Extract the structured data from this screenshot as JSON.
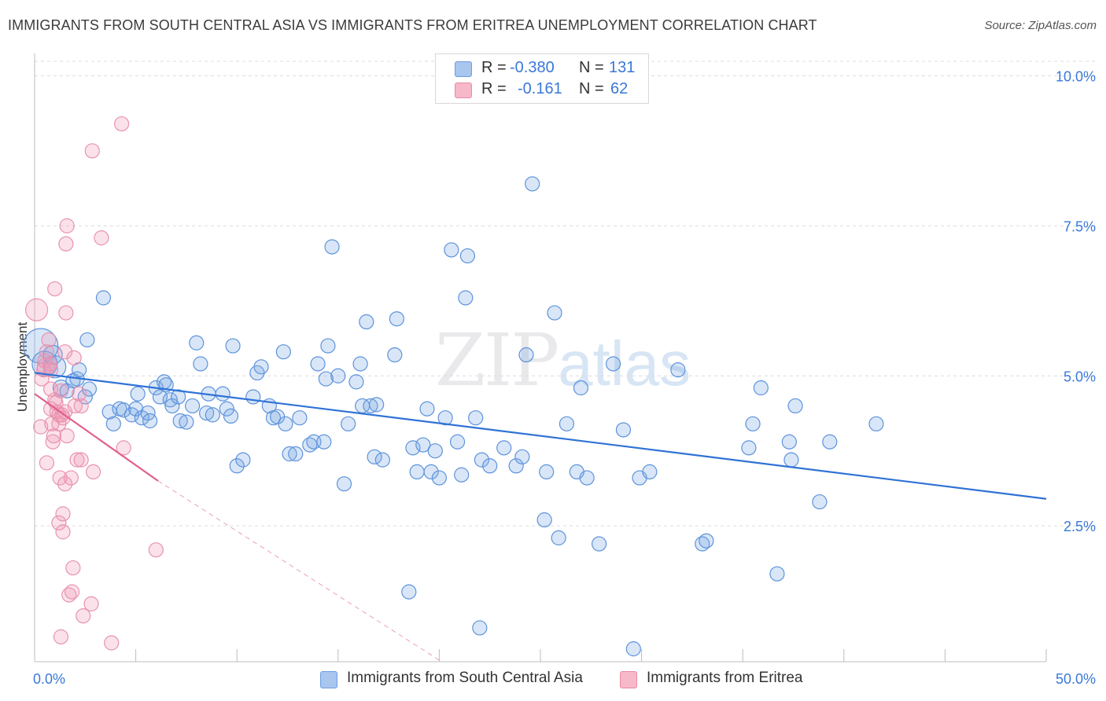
{
  "title": "IMMIGRANTS FROM SOUTH CENTRAL ASIA VS IMMIGRANTS FROM ERITREA UNEMPLOYMENT CORRELATION CHART",
  "source": "Source: ZipAtlas.com",
  "watermark": {
    "zip": "ZIP",
    "atlas": "atlas"
  },
  "legend_top": {
    "rows": [
      {
        "r_label": "R =",
        "r_value": "-0.380",
        "n_label": "N =",
        "n_value": "131",
        "color": "#a9c6ee",
        "border": "#6b9ee0"
      },
      {
        "r_label": "R =",
        "r_value": "-0.161",
        "n_label": "N =",
        "n_value": "62",
        "color": "#f7b8ca",
        "border": "#e88aa6"
      }
    ]
  },
  "legend_bottom": [
    {
      "label": "Immigrants from South Central Asia",
      "color": "#a9c6ee",
      "border": "#6b9ee0"
    },
    {
      "label": "Immigrants from Eritrea",
      "color": "#f7b8ca",
      "border": "#e88aa6"
    }
  ],
  "colors": {
    "blue_fill": "rgba(120,165,225,0.28)",
    "blue_stroke": "#5d93dc",
    "blue_line": "#2f72d6",
    "pink_fill": "rgba(240,150,180,0.28)",
    "pink_stroke": "#e893ae",
    "pink_line": "#e0608c",
    "grid": "#dcdce0",
    "axis_text": "#3a78d8"
  },
  "chart_data": {
    "type": "scatter",
    "title": "IMMIGRANTS FROM SOUTH CENTRAL ASIA VS IMMIGRANTS FROM ERITREA UNEMPLOYMENT CORRELATION CHART",
    "xlabel": "",
    "ylabel": "Unemployment",
    "xlim": [
      0,
      50
    ],
    "ylim": [
      0,
      10.5
    ],
    "x_tick_labels": [
      {
        "value": 0,
        "label": "0.0%"
      },
      {
        "value": 50,
        "label": "50.0%"
      }
    ],
    "y_tick_labels": [
      {
        "value": 2.5,
        "label": "2.5%"
      },
      {
        "value": 5.0,
        "label": "5.0%"
      },
      {
        "value": 7.5,
        "label": "7.5%"
      },
      {
        "value": 10.0,
        "label": "10.0%"
      }
    ],
    "x_minor_ticks": [
      0,
      5,
      10,
      15,
      20,
      25,
      30,
      35,
      40,
      45,
      50
    ],
    "series": [
      {
        "name": "Immigrants from South Central Asia",
        "R": -0.38,
        "N": 131,
        "trend": {
          "x": [
            0,
            50
          ],
          "y": [
            5.05,
            2.95
          ],
          "extend_dashed_to": null
        },
        "points": [
          [
            0.3,
            5.5,
            22
          ],
          [
            0.5,
            5.2,
            16
          ],
          [
            0.9,
            5.35,
            12
          ],
          [
            1.0,
            5.15,
            14
          ],
          [
            1.3,
            4.8,
            10
          ],
          [
            1.6,
            4.75,
            9
          ],
          [
            1.9,
            4.92,
            9
          ],
          [
            2.1,
            4.95,
            9
          ],
          [
            2.2,
            5.1,
            9
          ],
          [
            2.5,
            4.65,
            9
          ],
          [
            2.7,
            4.78,
            9
          ],
          [
            2.6,
            5.6,
            9
          ],
          [
            3.4,
            6.3,
            9
          ],
          [
            3.7,
            4.4,
            9
          ],
          [
            3.9,
            4.2,
            9
          ],
          [
            4.2,
            4.45,
            9
          ],
          [
            4.4,
            4.43,
            9
          ],
          [
            4.8,
            4.35,
            9
          ],
          [
            5.0,
            4.45,
            9
          ],
          [
            5.1,
            4.7,
            9
          ],
          [
            5.3,
            4.3,
            9
          ],
          [
            5.6,
            4.38,
            9
          ],
          [
            5.7,
            4.25,
            9
          ],
          [
            6.0,
            4.8,
            9
          ],
          [
            6.2,
            4.65,
            9
          ],
          [
            6.4,
            4.9,
            9
          ],
          [
            6.5,
            4.85,
            9
          ],
          [
            6.7,
            4.6,
            9
          ],
          [
            6.8,
            4.5,
            9
          ],
          [
            7.1,
            4.65,
            9
          ],
          [
            7.2,
            4.25,
            9
          ],
          [
            7.5,
            4.23,
            9
          ],
          [
            7.8,
            4.5,
            9
          ],
          [
            8.0,
            5.55,
            9
          ],
          [
            8.2,
            5.2,
            9
          ],
          [
            8.5,
            4.38,
            9
          ],
          [
            8.6,
            4.7,
            9
          ],
          [
            8.8,
            4.35,
            9
          ],
          [
            9.3,
            4.7,
            9
          ],
          [
            9.5,
            4.45,
            9
          ],
          [
            9.7,
            4.33,
            9
          ],
          [
            9.8,
            5.5,
            9
          ],
          [
            10.0,
            3.5,
            9
          ],
          [
            10.3,
            3.6,
            9
          ],
          [
            10.8,
            4.65,
            9
          ],
          [
            11.0,
            5.05,
            9
          ],
          [
            11.2,
            5.15,
            9
          ],
          [
            11.6,
            4.5,
            9
          ],
          [
            11.8,
            4.3,
            9
          ],
          [
            12.0,
            4.32,
            9
          ],
          [
            12.4,
            4.2,
            9
          ],
          [
            12.3,
            5.4,
            9
          ],
          [
            12.6,
            3.7,
            9
          ],
          [
            12.9,
            3.7,
            9
          ],
          [
            13.1,
            4.3,
            9
          ],
          [
            13.6,
            3.85,
            9
          ],
          [
            13.8,
            3.9,
            9
          ],
          [
            14.0,
            5.2,
            9
          ],
          [
            14.3,
            3.9,
            9
          ],
          [
            14.4,
            4.95,
            9
          ],
          [
            14.5,
            5.5,
            9
          ],
          [
            14.7,
            7.15,
            9
          ],
          [
            15.0,
            5.0,
            9
          ],
          [
            15.3,
            3.2,
            9
          ],
          [
            15.5,
            4.2,
            9
          ],
          [
            15.9,
            4.9,
            9
          ],
          [
            16.1,
            5.2,
            9
          ],
          [
            16.2,
            4.5,
            9
          ],
          [
            16.4,
            5.9,
            9
          ],
          [
            16.6,
            4.5,
            9
          ],
          [
            16.9,
            4.52,
            9
          ],
          [
            16.8,
            3.65,
            9
          ],
          [
            17.2,
            3.6,
            9
          ],
          [
            17.8,
            5.35,
            9
          ],
          [
            17.9,
            5.95,
            9
          ],
          [
            18.5,
            1.4,
            9
          ],
          [
            18.7,
            3.8,
            9
          ],
          [
            18.9,
            3.4,
            9
          ],
          [
            19.2,
            3.85,
            9
          ],
          [
            19.4,
            4.45,
            9
          ],
          [
            19.6,
            3.4,
            9
          ],
          [
            19.8,
            3.75,
            9
          ],
          [
            20.0,
            3.3,
            9
          ],
          [
            20.3,
            4.3,
            9
          ],
          [
            20.6,
            7.1,
            9
          ],
          [
            20.9,
            3.9,
            9
          ],
          [
            21.1,
            3.35,
            9
          ],
          [
            21.3,
            6.3,
            9
          ],
          [
            21.4,
            7.0,
            9
          ],
          [
            21.8,
            4.3,
            9
          ],
          [
            22.0,
            0.8,
            9
          ],
          [
            22.1,
            3.6,
            9
          ],
          [
            22.5,
            3.5,
            9
          ],
          [
            23.2,
            3.8,
            9
          ],
          [
            23.8,
            3.5,
            9
          ],
          [
            24.1,
            3.65,
            9
          ],
          [
            24.3,
            5.35,
            9
          ],
          [
            24.6,
            8.2,
            9
          ],
          [
            25.2,
            2.6,
            9
          ],
          [
            25.3,
            3.4,
            9
          ],
          [
            25.7,
            6.05,
            9
          ],
          [
            25.9,
            2.3,
            9
          ],
          [
            26.3,
            4.2,
            9
          ],
          [
            26.8,
            3.4,
            9
          ],
          [
            27.0,
            4.8,
            9
          ],
          [
            27.3,
            3.3,
            9
          ],
          [
            27.9,
            2.2,
            9
          ],
          [
            28.6,
            5.2,
            9
          ],
          [
            29.1,
            4.1,
            9
          ],
          [
            29.6,
            0.45,
            9
          ],
          [
            29.9,
            3.3,
            9
          ],
          [
            30.4,
            3.4,
            9
          ],
          [
            31.8,
            5.1,
            9
          ],
          [
            33.0,
            2.2,
            9
          ],
          [
            33.2,
            2.25,
            9
          ],
          [
            35.3,
            3.8,
            9
          ],
          [
            35.5,
            4.2,
            9
          ],
          [
            35.9,
            4.8,
            9
          ],
          [
            36.7,
            1.7,
            9
          ],
          [
            37.3,
            3.9,
            9
          ],
          [
            37.4,
            3.6,
            9
          ],
          [
            37.6,
            4.5,
            9
          ],
          [
            38.8,
            2.9,
            9
          ],
          [
            39.3,
            3.9,
            9
          ],
          [
            41.6,
            4.2,
            9
          ]
        ]
      },
      {
        "name": "Immigrants from Eritrea",
        "R": -0.161,
        "N": 62,
        "trend": {
          "x": [
            0,
            6.1
          ],
          "y": [
            4.7,
            3.25
          ],
          "dashed_to": {
            "x": 20.0,
            "y": 0.0
          }
        },
        "points": [
          [
            0.1,
            6.1,
            14
          ],
          [
            0.3,
            4.15,
            9
          ],
          [
            0.35,
            4.95,
            9
          ],
          [
            0.45,
            5.1,
            9
          ],
          [
            0.5,
            5.25,
            9
          ],
          [
            0.55,
            5.15,
            11
          ],
          [
            0.6,
            5.4,
            9
          ],
          [
            0.6,
            3.55,
            9
          ],
          [
            0.7,
            5.6,
            9
          ],
          [
            0.75,
            5.2,
            9
          ],
          [
            0.8,
            5.1,
            9
          ],
          [
            0.8,
            4.78,
            9
          ],
          [
            0.8,
            4.45,
            9
          ],
          [
            0.85,
            4.2,
            9
          ],
          [
            0.9,
            3.9,
            9
          ],
          [
            0.95,
            4.0,
            9
          ],
          [
            1.0,
            6.45,
            9
          ],
          [
            1.0,
            4.6,
            9
          ],
          [
            1.05,
            4.55,
            9
          ],
          [
            1.1,
            4.4,
            9
          ],
          [
            1.2,
            4.35,
            9
          ],
          [
            1.2,
            4.2,
            9
          ],
          [
            1.2,
            2.55,
            9
          ],
          [
            1.25,
            3.3,
            9
          ],
          [
            1.3,
            0.65,
            9
          ],
          [
            1.3,
            4.75,
            9
          ],
          [
            1.35,
            4.35,
            9
          ],
          [
            1.4,
            4.3,
            9
          ],
          [
            1.4,
            2.4,
            9
          ],
          [
            1.4,
            2.7,
            9
          ],
          [
            1.5,
            4.4,
            9
          ],
          [
            1.5,
            3.2,
            9
          ],
          [
            1.5,
            5.4,
            9
          ],
          [
            1.55,
            6.05,
            9
          ],
          [
            1.55,
            7.2,
            9
          ],
          [
            1.6,
            7.5,
            9
          ],
          [
            1.6,
            4.0,
            9
          ],
          [
            1.7,
            1.35,
            9
          ],
          [
            1.8,
            3.3,
            9
          ],
          [
            1.85,
            1.4,
            9
          ],
          [
            1.9,
            1.8,
            9
          ],
          [
            1.95,
            5.3,
            9
          ],
          [
            2.0,
            4.5,
            9
          ],
          [
            2.1,
            3.6,
            9
          ],
          [
            2.2,
            4.7,
            9
          ],
          [
            2.3,
            4.5,
            9
          ],
          [
            2.3,
            3.6,
            9
          ],
          [
            2.4,
            1.0,
            9
          ],
          [
            2.8,
            1.2,
            9
          ],
          [
            2.85,
            8.75,
            9
          ],
          [
            2.9,
            3.4,
            9
          ],
          [
            3.3,
            7.3,
            9
          ],
          [
            3.8,
            0.55,
            9
          ],
          [
            4.3,
            9.2,
            9
          ],
          [
            4.4,
            3.8,
            9
          ],
          [
            6.0,
            2.1,
            9
          ]
        ]
      }
    ]
  }
}
